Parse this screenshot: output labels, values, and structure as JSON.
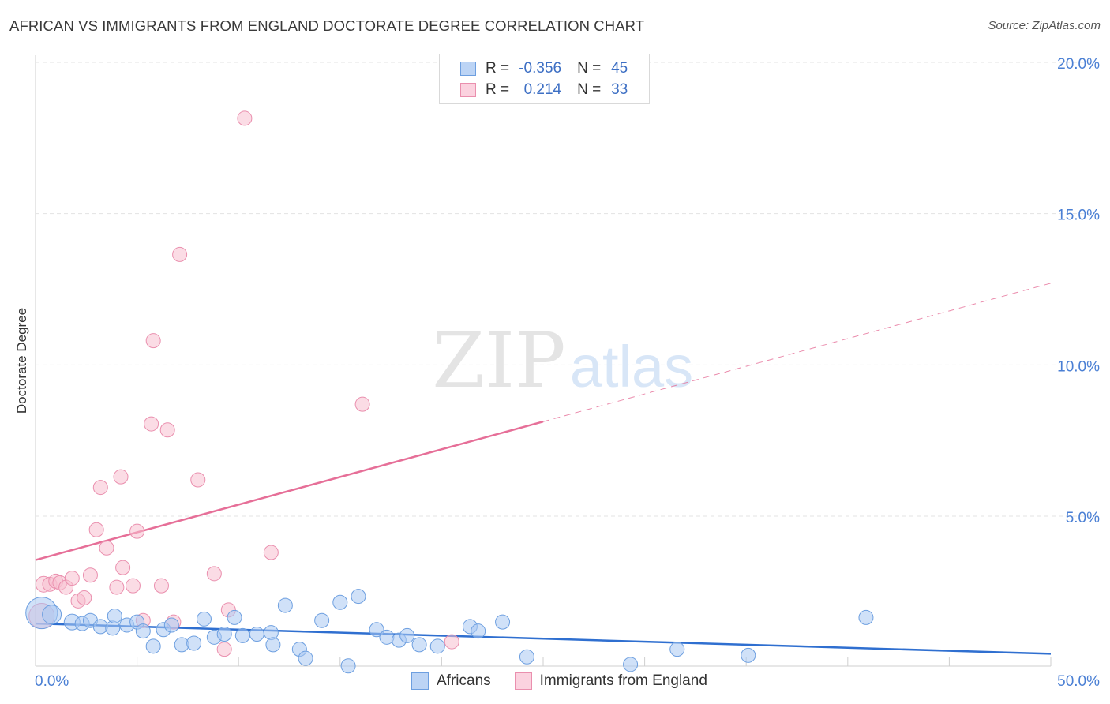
{
  "title": "AFRICAN VS IMMIGRANTS FROM ENGLAND DOCTORATE DEGREE CORRELATION CHART",
  "source": "Source: ZipAtlas.com",
  "watermark": {
    "zip": "ZIP",
    "atlas": "atlas"
  },
  "legend": {
    "rows": [
      {
        "r_label": "R =",
        "r_value": "-0.356",
        "n_label": "N =",
        "n_value": "45",
        "color": "#a9c8f2",
        "border": "#6d9fe0"
      },
      {
        "r_label": "R =",
        "r_value": "0.214",
        "n_label": "N =",
        "n_value": "33",
        "color": "#f7bfd0",
        "border": "#ea8fae"
      }
    ]
  },
  "bottom_legend": {
    "items": [
      "Africans",
      "Immigrants from England"
    ]
  },
  "chart_data": {
    "type": "scatter",
    "xlabel": "",
    "ylabel": "Doctorate Degree",
    "xlim": [
      0,
      50
    ],
    "ylim": [
      0,
      21
    ],
    "x_tick_labels": [
      "0.0%",
      "50.0%"
    ],
    "y_ticks": [
      5,
      10,
      15,
      20
    ],
    "y_tick_labels": [
      "5.0%",
      "10.0%",
      "15.0%",
      "20.0%"
    ],
    "grid": true,
    "series": [
      {
        "name": "Africans",
        "color": "#a9c8f2",
        "edge": "#6d9fe0",
        "trend": {
          "x0": 0,
          "y0": 1.45,
          "x1": 50,
          "y1": 0.45,
          "dashed_from": null,
          "color": "#2f6fd0"
        },
        "points": [
          [
            0.3,
            1.8,
            20
          ],
          [
            0.8,
            1.75,
            12
          ],
          [
            1.8,
            1.5,
            10
          ],
          [
            2.3,
            1.45,
            9
          ],
          [
            2.7,
            1.55,
            9
          ],
          [
            3.2,
            1.35,
            9
          ],
          [
            3.8,
            1.3,
            9
          ],
          [
            3.9,
            1.7,
            9
          ],
          [
            4.5,
            1.4,
            9
          ],
          [
            5.0,
            1.5,
            9
          ],
          [
            5.3,
            1.2,
            9
          ],
          [
            5.8,
            0.7,
            9
          ],
          [
            6.3,
            1.25,
            9
          ],
          [
            6.7,
            1.4,
            9
          ],
          [
            7.2,
            0.75,
            9
          ],
          [
            7.8,
            0.8,
            9
          ],
          [
            8.3,
            1.6,
            9
          ],
          [
            8.8,
            1.0,
            9
          ],
          [
            9.3,
            1.1,
            9
          ],
          [
            9.8,
            1.65,
            9
          ],
          [
            10.2,
            1.05,
            9
          ],
          [
            10.9,
            1.1,
            9
          ],
          [
            11.6,
            1.15,
            9
          ],
          [
            11.7,
            0.75,
            9
          ],
          [
            12.3,
            2.05,
            9
          ],
          [
            13.0,
            0.6,
            9
          ],
          [
            13.3,
            0.3,
            9
          ],
          [
            14.1,
            1.55,
            9
          ],
          [
            15.0,
            2.15,
            9
          ],
          [
            15.4,
            0.05,
            9
          ],
          [
            15.9,
            2.35,
            9
          ],
          [
            16.8,
            1.25,
            9
          ],
          [
            17.3,
            1.0,
            9
          ],
          [
            17.9,
            0.9,
            9
          ],
          [
            18.3,
            1.05,
            9
          ],
          [
            18.9,
            0.75,
            9
          ],
          [
            19.8,
            0.7,
            9
          ],
          [
            21.4,
            1.35,
            9
          ],
          [
            21.8,
            1.2,
            9
          ],
          [
            23.0,
            1.5,
            9
          ],
          [
            24.2,
            0.35,
            9
          ],
          [
            29.3,
            0.1,
            9
          ],
          [
            31.6,
            0.6,
            9
          ],
          [
            35.1,
            0.4,
            9
          ],
          [
            40.9,
            1.65,
            9
          ]
        ]
      },
      {
        "name": "Immigrants from England",
        "color": "#f7bfd0",
        "edge": "#ea8fae",
        "trend": {
          "x0": 0,
          "y0": 3.55,
          "x1": 50,
          "y1": 12.7,
          "dashed_from": 25,
          "color": "#e66f98"
        },
        "points": [
          [
            0.3,
            1.7,
            16
          ],
          [
            0.4,
            2.75,
            10
          ],
          [
            0.7,
            2.75,
            9
          ],
          [
            1.0,
            2.85,
            9
          ],
          [
            1.2,
            2.8,
            9
          ],
          [
            1.5,
            2.65,
            9
          ],
          [
            1.8,
            2.95,
            9
          ],
          [
            2.1,
            2.2,
            9
          ],
          [
            2.4,
            2.3,
            9
          ],
          [
            2.7,
            3.05,
            9
          ],
          [
            3.0,
            4.55,
            9
          ],
          [
            3.2,
            5.95,
            9
          ],
          [
            3.5,
            3.95,
            9
          ],
          [
            4.0,
            2.65,
            9
          ],
          [
            4.2,
            6.3,
            9
          ],
          [
            4.3,
            3.3,
            9
          ],
          [
            4.8,
            2.7,
            9
          ],
          [
            5.0,
            4.5,
            9
          ],
          [
            5.3,
            1.55,
            9
          ],
          [
            5.7,
            8.05,
            9
          ],
          [
            5.8,
            10.8,
            9
          ],
          [
            6.2,
            2.7,
            9
          ],
          [
            6.5,
            7.85,
            9
          ],
          [
            6.8,
            1.5,
            9
          ],
          [
            7.1,
            13.65,
            9
          ],
          [
            8.0,
            6.2,
            9
          ],
          [
            8.8,
            3.1,
            9
          ],
          [
            9.3,
            0.6,
            9
          ],
          [
            9.5,
            1.9,
            9
          ],
          [
            10.3,
            18.15,
            9
          ],
          [
            11.6,
            3.8,
            9
          ],
          [
            16.1,
            8.7,
            9
          ],
          [
            20.5,
            0.85,
            9
          ]
        ]
      }
    ]
  }
}
